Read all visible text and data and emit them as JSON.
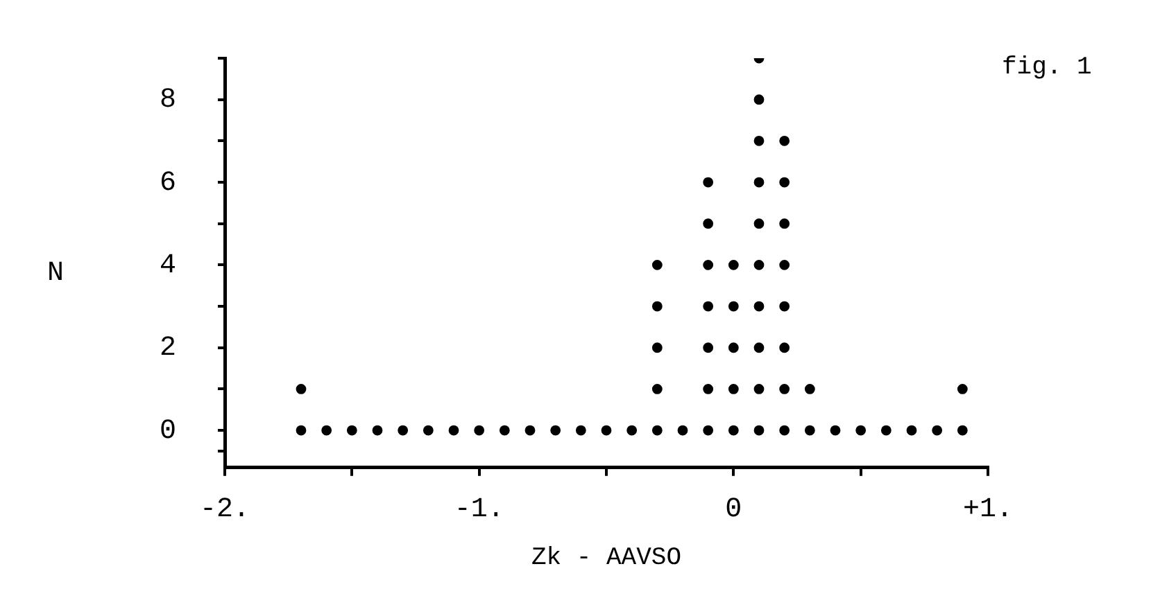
{
  "chart_data": {
    "type": "scatter",
    "xlabel": "Zk - AAVSO",
    "ylabel": "N",
    "annotations": [
      "fig. 1"
    ],
    "x": [
      -1.7,
      -1.6,
      -1.5,
      -1.4,
      -1.3,
      -1.2,
      -1.1,
      -1.0,
      -0.9,
      -0.8,
      -0.7,
      -0.6,
      -0.5,
      -0.4,
      -0.3,
      -0.2,
      -0.1,
      0.0,
      0.1,
      0.2,
      0.3,
      0.4,
      0.5,
      0.6,
      0.7,
      0.8,
      0.9,
      -1.7,
      -0.3,
      -0.3,
      -0.3,
      -0.3,
      -0.1,
      -0.1,
      -0.1,
      -0.1,
      -0.1,
      -0.1,
      0.0,
      0.0,
      0.0,
      0.0,
      0.1,
      0.1,
      0.1,
      0.1,
      0.1,
      0.1,
      0.1,
      0.1,
      0.1,
      0.2,
      0.2,
      0.2,
      0.2,
      0.2,
      0.2,
      0.2,
      0.3,
      0.9
    ],
    "series": [
      {
        "color": "#000000",
        "values": [
          0,
          0,
          0,
          0,
          0,
          0,
          0,
          0,
          0,
          0,
          0,
          0,
          0,
          0,
          0,
          0,
          0,
          0,
          0,
          0,
          0,
          0,
          0,
          0,
          0,
          0,
          0,
          1,
          1,
          2,
          3,
          4,
          1,
          2,
          3,
          4,
          5,
          6,
          1,
          2,
          3,
          4,
          1,
          2,
          3,
          4,
          5,
          6,
          7,
          8,
          9,
          1,
          2,
          3,
          4,
          5,
          6,
          7,
          1,
          1
        ]
      }
    ],
    "xlim": [
      -2,
      1
    ],
    "xticks": [
      {
        "value": -2,
        "label": "-2."
      },
      {
        "value": -1.5,
        "label": null
      },
      {
        "value": -1,
        "label": "-1."
      },
      {
        "value": -0.5,
        "label": null
      },
      0,
      {
        "value": 0.5,
        "label": null
      },
      {
        "value": 1,
        "label": "+1."
      }
    ],
    "ylim": [
      -0.9,
      9
    ],
    "yticks": [
      {
        "value": -0.5,
        "label": null
      },
      0,
      {
        "value": 1,
        "label": null
      },
      2,
      {
        "value": 3,
        "label": null
      },
      4,
      {
        "value": 5,
        "label": null
      },
      6,
      {
        "value": 7,
        "label": null
      },
      8,
      {
        "value": 9,
        "label": null
      }
    ],
    "marker": "circle",
    "grid": false,
    "legend": false
  }
}
